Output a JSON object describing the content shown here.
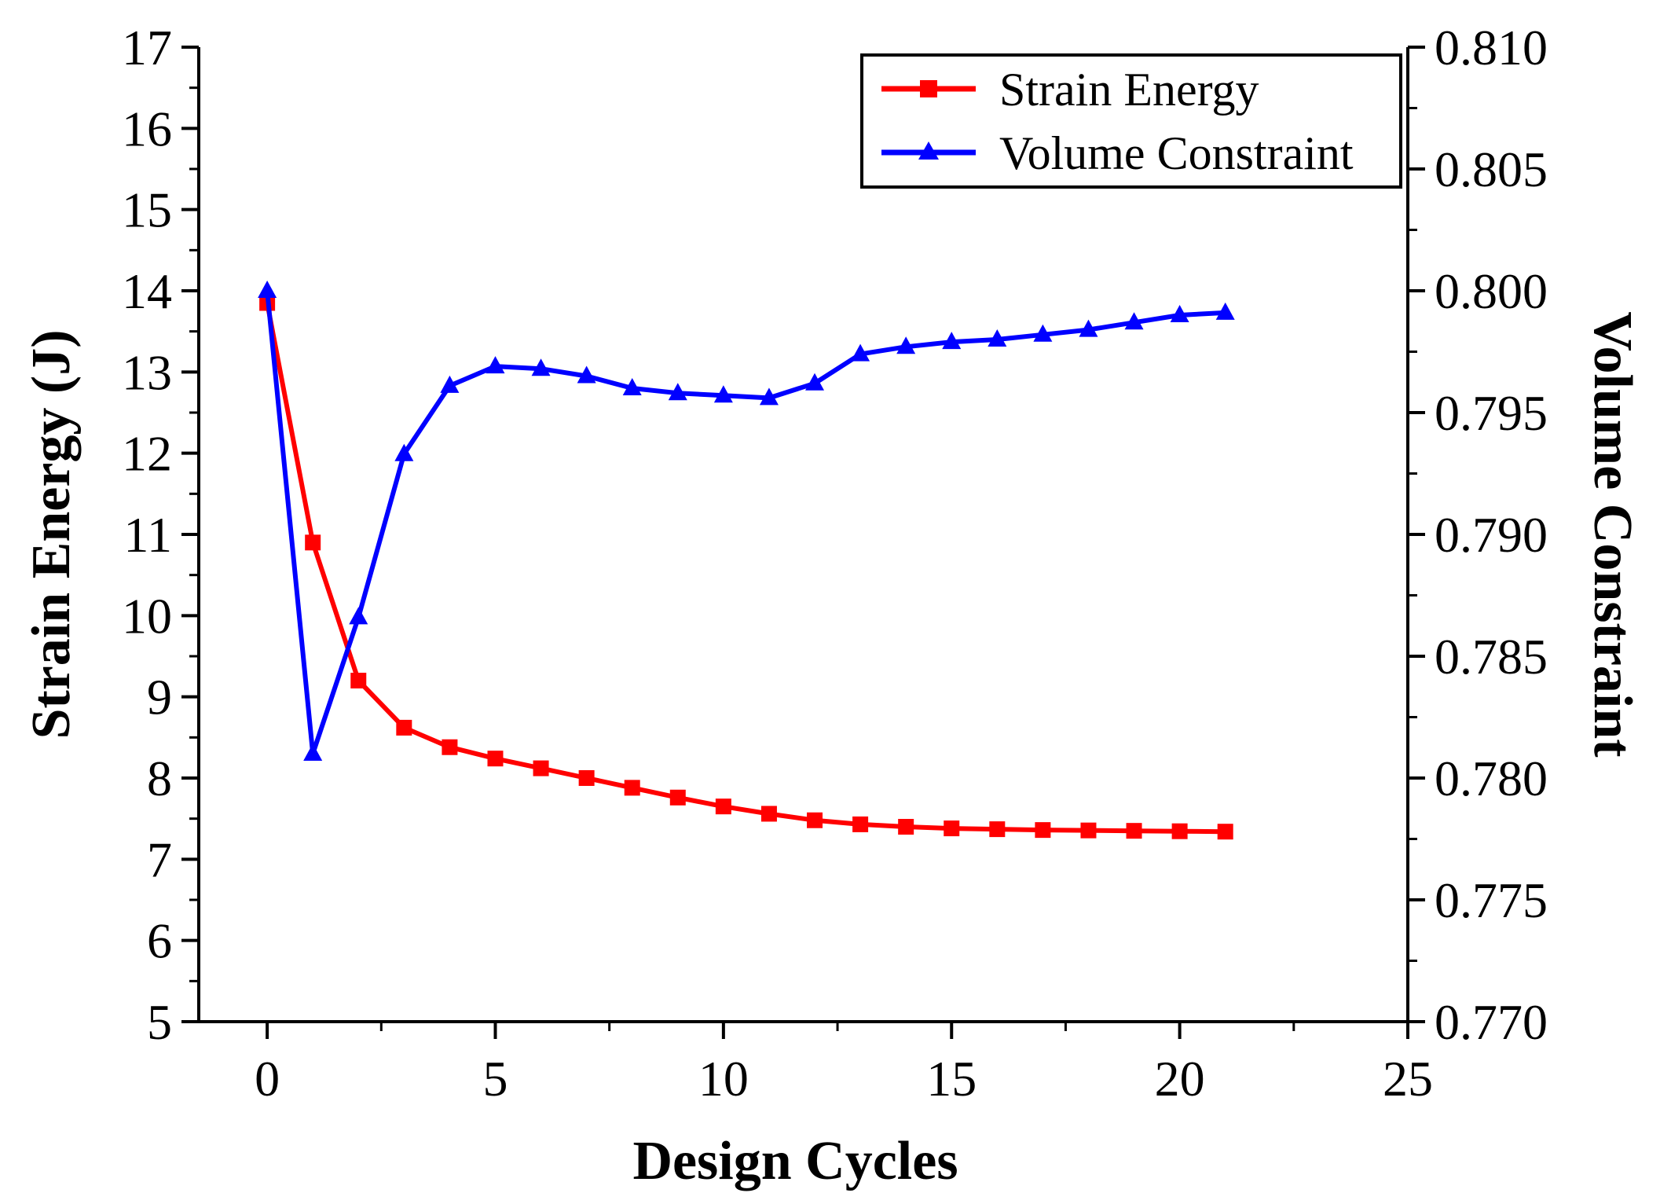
{
  "chart_data": {
    "type": "line",
    "title": "",
    "xlabel": "Design Cycles",
    "ylabel": "Strain Energy (J)",
    "y2label": "Volume Constraint",
    "xlim": [
      -1.5,
      25
    ],
    "ylim": [
      5,
      17
    ],
    "y2lim": [
      0.77,
      0.81
    ],
    "x_ticks": [
      "0",
      "5",
      "10",
      "15",
      "20",
      "25"
    ],
    "y_ticks": [
      "5",
      "6",
      "7",
      "8",
      "9",
      "10",
      "11",
      "12",
      "13",
      "14",
      "15",
      "16",
      "17"
    ],
    "y2_ticks": [
      "0.770",
      "0.775",
      "0.780",
      "0.785",
      "0.790",
      "0.795",
      "0.800",
      "0.805",
      "0.810"
    ],
    "legend_position": "top-right",
    "x": [
      0,
      1,
      2,
      3,
      4,
      5,
      6,
      7,
      8,
      9,
      10,
      11,
      12,
      13,
      14,
      15,
      16,
      17,
      18,
      19,
      20,
      21
    ],
    "series": [
      {
        "name": "Strain Energy",
        "axis": "left",
        "color": "#ff0000",
        "marker": "square",
        "values": [
          13.85,
          10.9,
          9.2,
          8.62,
          8.38,
          8.24,
          8.12,
          8.0,
          7.88,
          7.76,
          7.65,
          7.56,
          7.48,
          7.43,
          7.4,
          7.38,
          7.37,
          7.36,
          7.355,
          7.35,
          7.345,
          7.34
        ]
      },
      {
        "name": "Volume Constraint",
        "axis": "right",
        "color": "#0000ff",
        "marker": "triangle",
        "values": [
          0.8,
          0.781,
          0.7866,
          0.7933,
          0.7961,
          0.7969,
          0.7968,
          0.7965,
          0.796,
          0.7958,
          0.7957,
          0.7956,
          0.7962,
          0.7974,
          0.7977,
          0.7979,
          0.798,
          0.7982,
          0.7984,
          0.7987,
          0.799,
          0.7991
        ]
      }
    ]
  }
}
